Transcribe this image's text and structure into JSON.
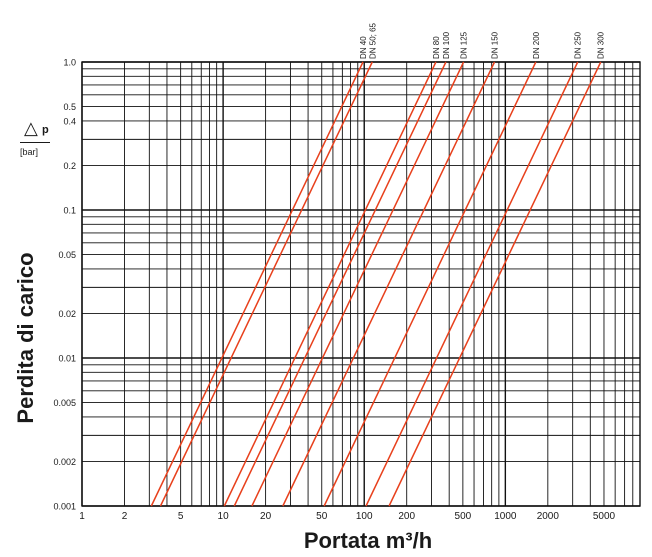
{
  "chart_data": {
    "type": "line",
    "xlabel": "Portata m³/h",
    "ylabel": "Perdita di carico",
    "y_symbol": "△",
    "y_symbol_letter": "p",
    "y_unit": "[bar]",
    "x_scale": "log",
    "y_scale": "log",
    "xlim": [
      1,
      9000
    ],
    "ylim": [
      0.001,
      1.0
    ],
    "grid": true,
    "x_ticks": [
      1,
      2,
      5,
      10,
      20,
      50,
      100,
      200,
      500,
      1000,
      2000,
      5000
    ],
    "x_tick_labels": [
      "1",
      "2",
      "5",
      "10",
      "20",
      "50",
      "100",
      "200",
      "500",
      "1000",
      "2000",
      "5000"
    ],
    "y_ticks": [
      0.001,
      0.002,
      0.005,
      0.01,
      0.02,
      0.05,
      0.1,
      0.2,
      0.4,
      0.5,
      1.0
    ],
    "y_tick_labels": [
      "0.001",
      "0.002",
      "0.005",
      "0.01",
      "0.02",
      "0.05",
      "0.1",
      "0.2",
      "0.4",
      "0.5",
      "1.0"
    ],
    "series": [
      {
        "name": "DN 40",
        "x": [
          3.1,
          98
        ],
        "y": [
          0.001,
          1.0
        ]
      },
      {
        "name": "DN 50; 65",
        "x": [
          3.6,
          114
        ],
        "y": [
          0.001,
          1.0
        ]
      },
      {
        "name": "DN 80",
        "x": [
          10.2,
          322
        ],
        "y": [
          0.001,
          1.0
        ]
      },
      {
        "name": "DN 100",
        "x": [
          12.0,
          379
        ],
        "y": [
          0.001,
          1.0
        ]
      },
      {
        "name": "DN 125",
        "x": [
          16.0,
          506
        ],
        "y": [
          0.001,
          1.0
        ]
      },
      {
        "name": "DN 150",
        "x": [
          26.5,
          838
        ],
        "y": [
          0.001,
          1.0
        ]
      },
      {
        "name": "DN 200",
        "x": [
          52.0,
          1644
        ],
        "y": [
          0.001,
          1.0
        ]
      },
      {
        "name": "DN 250",
        "x": [
          103,
          3257
        ],
        "y": [
          0.001,
          1.0
        ]
      },
      {
        "name": "DN 300",
        "x": [
          150,
          4743
        ],
        "y": [
          0.001,
          1.0
        ]
      }
    ],
    "colors": {
      "series": "#e8401c",
      "grid": "#111111",
      "text": "#1a1a1a"
    }
  }
}
